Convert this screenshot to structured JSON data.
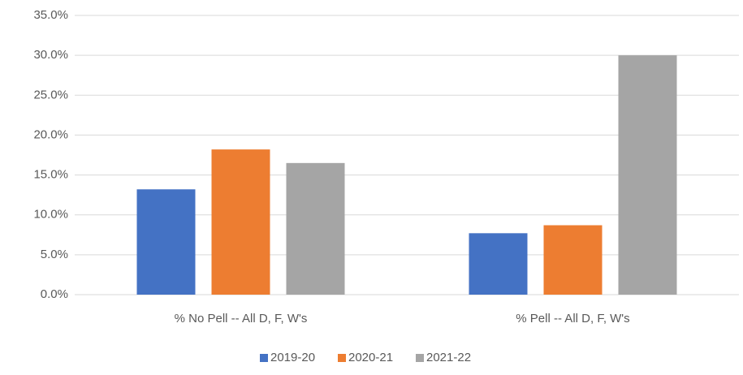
{
  "chart_data": {
    "type": "bar",
    "categories": [
      "% No Pell --  All D, F, W's",
      "% Pell -- All D, F, W's"
    ],
    "series": [
      {
        "name": "2019-20",
        "color": "#4472c4",
        "values": [
          13.2,
          7.7
        ]
      },
      {
        "name": "2020-21",
        "color": "#ed7d31",
        "values": [
          18.2,
          8.7
        ]
      },
      {
        "name": "2021-22",
        "color": "#a5a5a5",
        "values": [
          16.5,
          30.0
        ]
      }
    ],
    "ylim": [
      0,
      35
    ],
    "yticks": [
      {
        "value": 0,
        "label": "0.0%"
      },
      {
        "value": 5,
        "label": "5.0%"
      },
      {
        "value": 10,
        "label": "10.0%"
      },
      {
        "value": 15,
        "label": "15.0%"
      },
      {
        "value": 20,
        "label": "20.0%"
      },
      {
        "value": 25,
        "label": "25.0%"
      },
      {
        "value": 30,
        "label": "30.0%"
      },
      {
        "value": 35,
        "label": "35.0%"
      }
    ],
    "grid": true,
    "legend": "bottom"
  }
}
